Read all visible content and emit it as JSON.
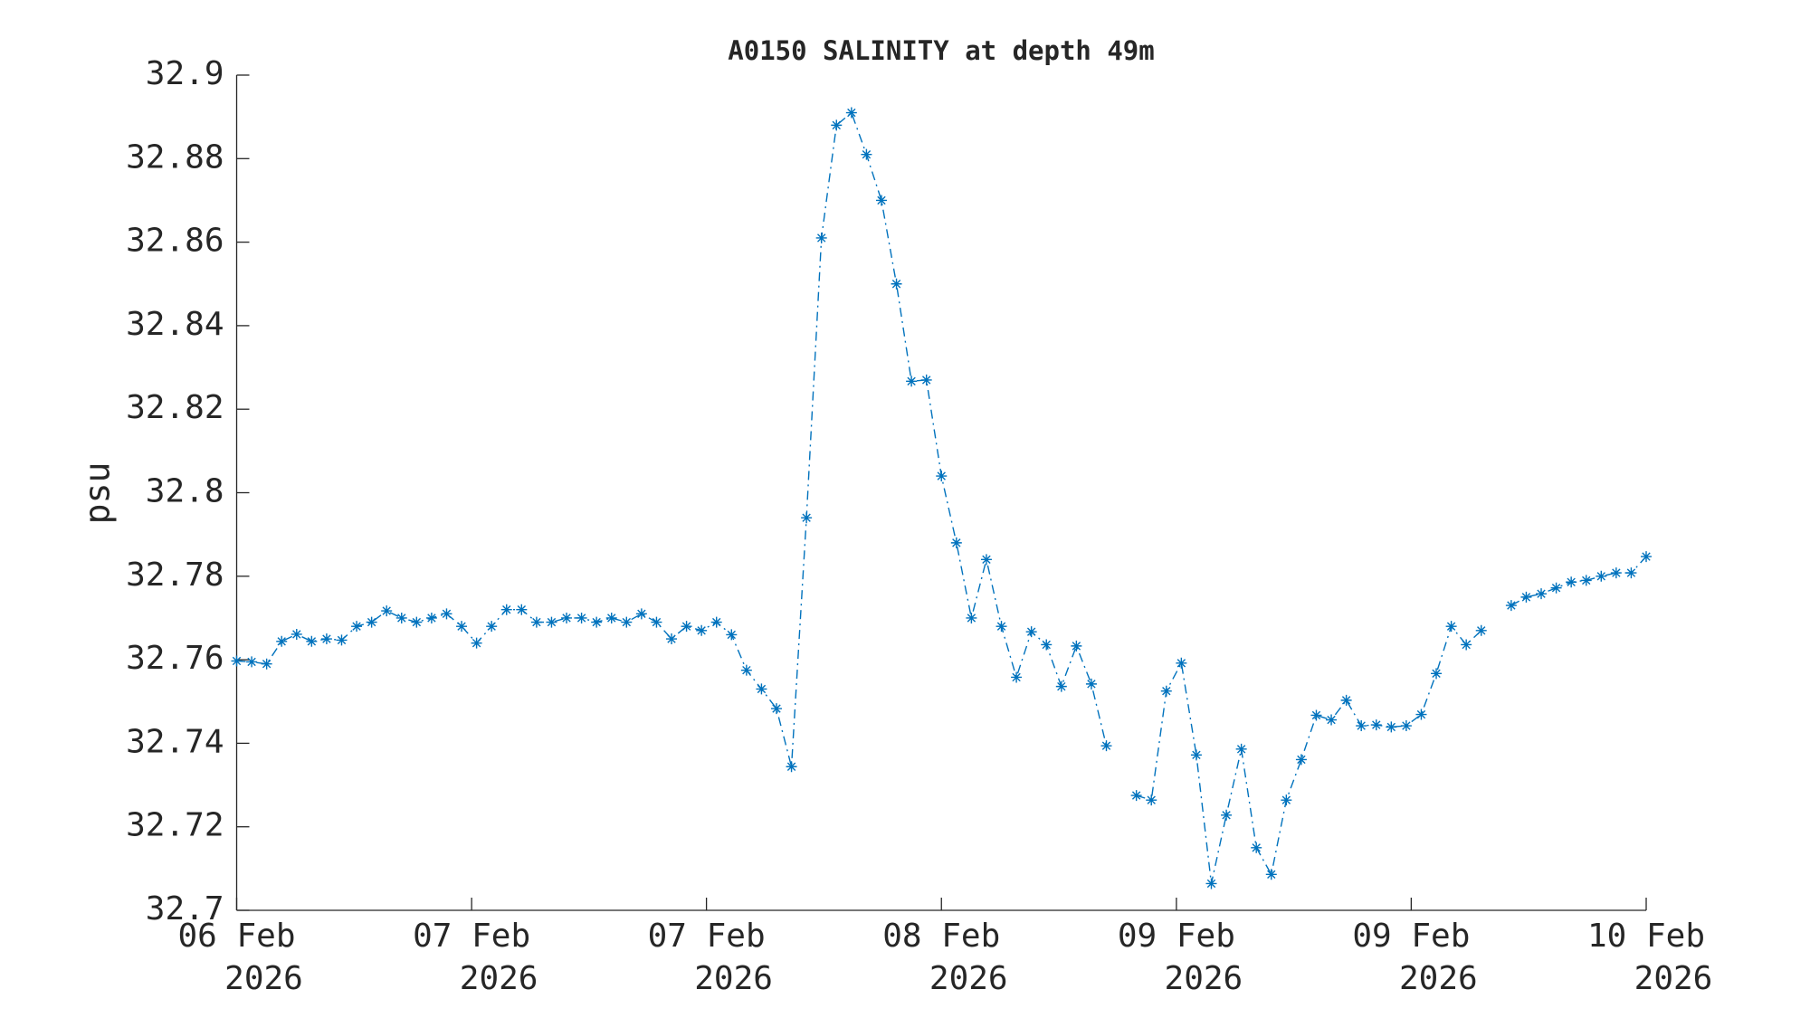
{
  "chart_data": {
    "type": "line",
    "title": "A0150 SALINITY at depth 49m",
    "ylabel": "psu",
    "x": [
      0,
      1,
      2,
      3,
      4,
      5,
      6,
      7,
      8,
      9,
      10,
      11,
      12,
      13,
      14,
      15,
      16,
      17,
      18,
      19,
      20,
      21,
      22,
      23,
      24,
      25,
      26,
      27,
      28,
      29,
      30,
      31,
      32,
      33,
      34,
      35,
      36,
      37,
      38,
      39,
      40,
      41,
      42,
      43,
      44,
      45,
      46,
      47,
      48,
      49,
      50,
      51,
      52,
      53,
      54,
      55,
      56,
      57,
      58,
      59,
      60,
      61,
      62,
      63,
      64,
      65,
      66,
      67,
      68,
      69,
      70,
      71,
      72,
      73,
      74,
      75,
      76,
      77,
      78,
      79,
      80,
      81,
      82,
      83,
      84,
      85,
      86,
      87,
      88,
      89,
      90,
      91,
      92,
      93,
      94
    ],
    "series": [
      {
        "name": "salinity",
        "color": "#0072bd",
        "values": [
          32.7597,
          32.7595,
          32.759,
          32.7644,
          32.7661,
          32.7644,
          32.765,
          32.7647,
          32.768,
          32.769,
          32.7717,
          32.77,
          32.769,
          32.77,
          32.771,
          32.768,
          32.764,
          32.768,
          32.772,
          32.772,
          32.769,
          32.769,
          32.77,
          32.77,
          32.769,
          32.77,
          32.769,
          32.771,
          32.769,
          32.765,
          32.768,
          32.767,
          32.769,
          32.766,
          32.7575,
          32.753,
          32.7483,
          32.7344,
          32.794,
          32.861,
          32.888,
          32.891,
          32.881,
          32.87,
          32.85,
          32.8267,
          32.827,
          32.804,
          32.788,
          32.77,
          32.784,
          32.768,
          32.7558,
          32.7667,
          32.7636,
          32.7536,
          32.7633,
          32.7542,
          32.7394,
          null,
          32.7275,
          32.7264,
          32.7525,
          32.7592,
          32.7372,
          32.7064,
          32.7228,
          32.7386,
          32.715,
          32.7086,
          32.7264,
          32.7361,
          32.7467,
          32.7456,
          32.7503,
          32.7442,
          32.7444,
          32.7439,
          32.7442,
          32.7469,
          32.7567,
          32.768,
          32.7636,
          32.767,
          null,
          32.773,
          32.775,
          32.7758,
          32.7772,
          32.7786,
          32.779,
          32.78,
          32.7808,
          32.7808,
          32.7847
        ]
      }
    ],
    "xlim": [
      0,
      94
    ],
    "xticks": [
      {
        "value": 0,
        "label": "06 Feb 2026"
      },
      {
        "value": 15.67,
        "label": "07 Feb 2026"
      },
      {
        "value": 31.33,
        "label": "07 Feb 2026"
      },
      {
        "value": 47,
        "label": "08 Feb 2026"
      },
      {
        "value": 62.67,
        "label": "09 Feb 2026"
      },
      {
        "value": 78.33,
        "label": "09 Feb 2026"
      },
      {
        "value": 94,
        "label": "10 Feb 2026"
      }
    ],
    "ylim": [
      32.7,
      32.9
    ],
    "yticks": [
      32.7,
      32.72,
      32.74,
      32.76,
      32.78,
      32.8,
      32.82,
      32.84,
      32.86,
      32.88,
      32.9
    ]
  }
}
